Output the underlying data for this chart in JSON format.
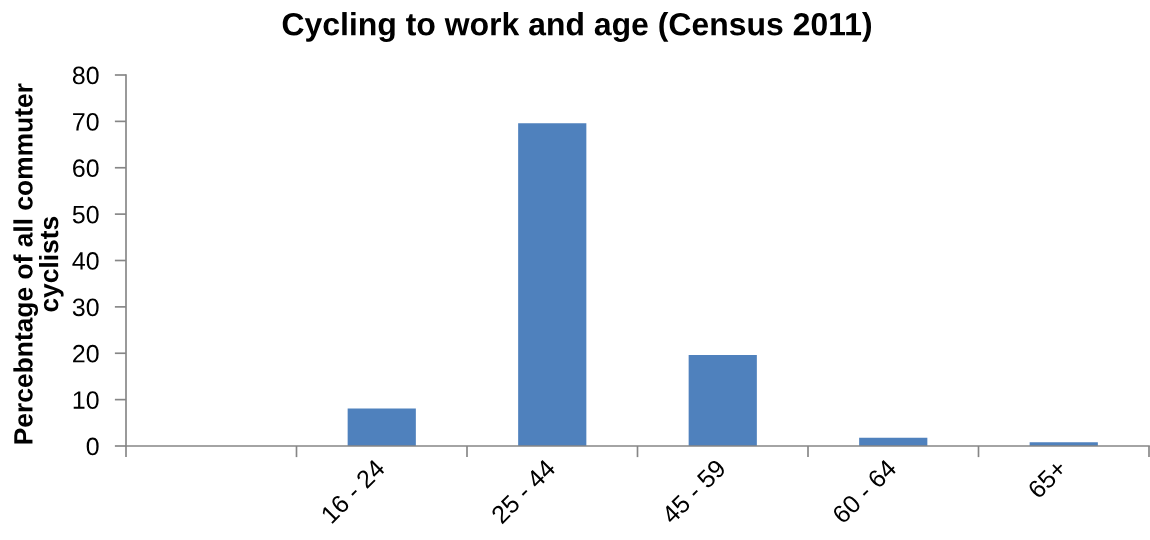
{
  "chart_data": {
    "type": "bar",
    "title": "Cycling to work and age (Census 2011)",
    "ylabel": "Percebntage of all commuter\ncyclists",
    "categories": [
      null,
      "16 - 24",
      "25 - 44",
      "45 - 59",
      "60 - 64",
      "65+"
    ],
    "values": [
      null,
      8.1,
      69.6,
      19.6,
      1.8,
      0.8
    ],
    "color": "#4f81bd",
    "ylim": [
      0,
      80
    ],
    "yticks": [
      0,
      10,
      20,
      30,
      40,
      50,
      60,
      70,
      80
    ],
    "grid": false,
    "legend": false
  }
}
